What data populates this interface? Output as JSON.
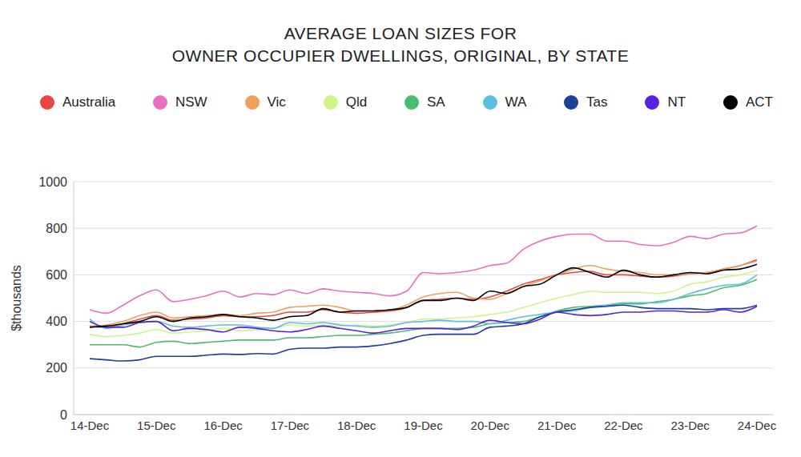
{
  "chart_data": {
    "type": "line",
    "title": "AVERAGE LOAN SIZES FOR\nOWNER OCCUPIER DWELLINGS, ORIGINAL, BY STATE",
    "y_label": "$thousands",
    "categories": [
      "14-Dec",
      null,
      null,
      null,
      "15-Dec",
      null,
      null,
      null,
      "16-Dec",
      null,
      null,
      null,
      "17-Dec",
      null,
      null,
      null,
      "18-Dec",
      null,
      null,
      null,
      "19-Dec",
      null,
      null,
      null,
      "20-Dec",
      null,
      null,
      null,
      "21-Dec",
      null,
      null,
      null,
      "22-Dec",
      null,
      null,
      null,
      "23-Dec",
      null,
      null,
      null,
      "24-Dec"
    ],
    "series": [
      {
        "name": "Australia",
        "color": "#e8473f",
        "values": [
          380,
          375,
          390,
          410,
          425,
          405,
          410,
          415,
          425,
          420,
          420,
          425,
          440,
          440,
          450,
          440,
          435,
          440,
          445,
          460,
          490,
          495,
          500,
          495,
          505,
          530,
          560,
          580,
          600,
          610,
          615,
          600,
          600,
          595,
          590,
          595,
          605,
          610,
          625,
          640,
          665
        ]
      },
      {
        "name": "NSW",
        "color": "#e870c2",
        "values": [
          450,
          435,
          470,
          510,
          535,
          485,
          495,
          510,
          530,
          505,
          520,
          515,
          535,
          520,
          540,
          530,
          525,
          520,
          510,
          530,
          610,
          605,
          610,
          620,
          640,
          650,
          710,
          745,
          765,
          775,
          775,
          745,
          745,
          730,
          725,
          740,
          765,
          755,
          775,
          780,
          810
        ]
      },
      {
        "name": "Vic",
        "color": "#f0a05c",
        "values": [
          380,
          385,
          400,
          425,
          440,
          415,
          420,
          425,
          430,
          425,
          435,
          440,
          460,
          465,
          470,
          460,
          445,
          445,
          450,
          470,
          505,
          520,
          525,
          500,
          495,
          520,
          550,
          575,
          600,
          625,
          640,
          625,
          615,
          610,
          600,
          600,
          605,
          610,
          625,
          640,
          660
        ]
      },
      {
        "name": "Qld",
        "color": "#cdf58c",
        "values": [
          345,
          335,
          340,
          350,
          365,
          350,
          355,
          360,
          370,
          360,
          365,
          370,
          385,
          380,
          385,
          380,
          385,
          380,
          385,
          395,
          410,
          410,
          415,
          420,
          430,
          440,
          460,
          480,
          500,
          515,
          530,
          525,
          525,
          525,
          520,
          530,
          560,
          570,
          590,
          600,
          620
        ]
      },
      {
        "name": "SA",
        "color": "#4cbb6c",
        "values": [
          300,
          300,
          300,
          290,
          310,
          315,
          305,
          310,
          315,
          320,
          320,
          320,
          330,
          330,
          335,
          340,
          340,
          345,
          350,
          360,
          370,
          370,
          370,
          375,
          390,
          395,
          400,
          420,
          445,
          460,
          465,
          470,
          475,
          475,
          485,
          495,
          510,
          520,
          545,
          555,
          580
        ]
      },
      {
        "name": "WA",
        "color": "#5bbfe0",
        "values": [
          410,
          370,
          385,
          395,
          400,
          380,
          375,
          380,
          385,
          385,
          375,
          370,
          395,
          390,
          395,
          385,
          380,
          375,
          380,
          395,
          400,
          405,
          400,
          400,
          390,
          405,
          420,
          430,
          440,
          445,
          460,
          470,
          480,
          480,
          480,
          495,
          520,
          540,
          555,
          560,
          600
        ]
      },
      {
        "name": "Tas",
        "color": "#1f3f99",
        "values": [
          240,
          235,
          230,
          235,
          250,
          250,
          250,
          255,
          260,
          258,
          262,
          260,
          280,
          285,
          285,
          290,
          290,
          295,
          305,
          320,
          340,
          345,
          345,
          345,
          375,
          380,
          390,
          420,
          440,
          450,
          460,
          465,
          470,
          460,
          455,
          455,
          455,
          450,
          455,
          455,
          470
        ]
      },
      {
        "name": "NT",
        "color": "#5a22e0",
        "values": [
          400,
          375,
          375,
          395,
          400,
          360,
          370,
          365,
          355,
          375,
          370,
          360,
          355,
          365,
          380,
          370,
          360,
          350,
          360,
          370,
          370,
          370,
          365,
          380,
          405,
          395,
          390,
          410,
          440,
          430,
          425,
          430,
          440,
          440,
          445,
          445,
          440,
          440,
          450,
          440,
          465
        ]
      },
      {
        "name": "ACT",
        "color": "#000000",
        "values": [
          375,
          380,
          390,
          400,
          420,
          400,
          415,
          420,
          430,
          420,
          415,
          405,
          420,
          425,
          455,
          440,
          445,
          445,
          450,
          460,
          490,
          490,
          500,
          490,
          530,
          520,
          550,
          560,
          600,
          630,
          610,
          590,
          620,
          600,
          590,
          600,
          610,
          605,
          620,
          625,
          645
        ]
      }
    ],
    "ylim": [
      0,
      1000
    ],
    "yticks": [
      0,
      200,
      400,
      600,
      800,
      1000
    ],
    "grid": true,
    "legend": "top"
  }
}
